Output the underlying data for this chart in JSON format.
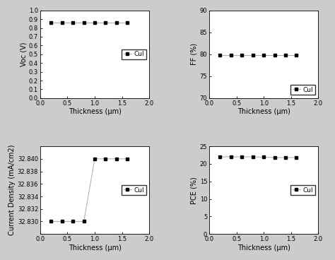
{
  "thickness": [
    0.2,
    0.4,
    0.6,
    0.8,
    1.0,
    1.2,
    1.4,
    1.6
  ],
  "voc": [
    0.86,
    0.86,
    0.86,
    0.86,
    0.86,
    0.86,
    0.86,
    0.86
  ],
  "voc_ylim": [
    0.0,
    1.0
  ],
  "voc_yticks": [
    0.0,
    0.1,
    0.2,
    0.3,
    0.4,
    0.5,
    0.6,
    0.7,
    0.8,
    0.9,
    1.0
  ],
  "voc_ylabel": "Voc (V)",
  "ff": [
    79.8,
    79.8,
    79.8,
    79.8,
    79.8,
    79.8,
    79.8,
    79.8
  ],
  "ff_ylim": [
    70,
    90
  ],
  "ff_yticks": [
    70,
    75,
    80,
    85,
    90
  ],
  "ff_ylabel": "FF (%)",
  "jsc_x": [
    0.2,
    0.4,
    0.6,
    0.8,
    1.0,
    1.2,
    1.4,
    1.6
  ],
  "jsc_y": [
    32.83,
    32.83,
    32.83,
    32.83,
    32.84,
    32.84,
    32.84,
    32.84
  ],
  "jsc_ylim": [
    32.828,
    32.842
  ],
  "jsc_yticks": [
    32.83,
    32.832,
    32.834,
    32.836,
    32.838,
    32.84
  ],
  "jsc_ylabel": "Current Density (mA/cm2)",
  "pce_x": [
    0.2,
    0.4,
    0.6,
    0.8,
    1.0,
    1.2,
    1.4,
    1.6
  ],
  "pce_y": [
    22.0,
    22.0,
    22.0,
    22.0,
    21.9,
    21.8,
    21.8,
    21.8
  ],
  "pce_ylim": [
    0,
    25
  ],
  "pce_yticks": [
    0,
    5,
    10,
    15,
    20,
    25
  ],
  "pce_ylabel": "PCE (%)",
  "xlim": [
    0,
    2
  ],
  "xticks": [
    0.0,
    0.5,
    1.0,
    1.5,
    2.0
  ],
  "xlabel": "Thickness (μm)",
  "legend_label": "CuI",
  "marker": "s",
  "markersize": 3.5,
  "linecolor": "#aaaaaa",
  "markercolor": "black",
  "legend_fontsize": 6.5,
  "tick_fontsize": 6,
  "label_fontsize": 7,
  "background_color": "#cccccc"
}
